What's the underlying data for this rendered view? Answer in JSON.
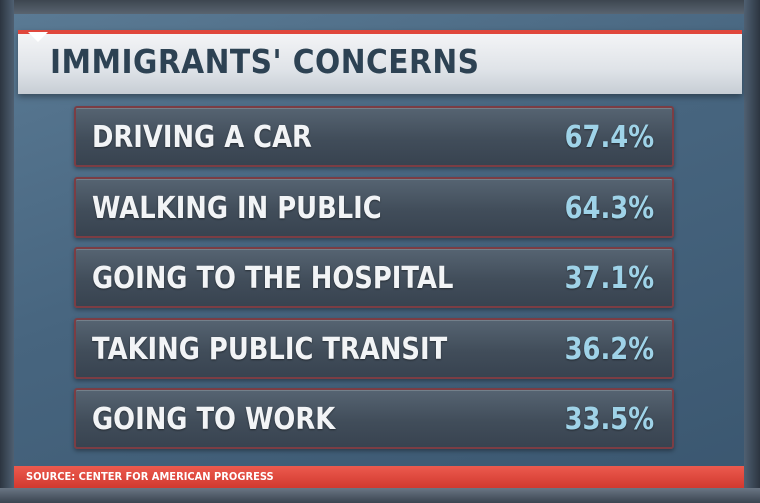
{
  "chart_data": {
    "type": "table",
    "title": "IMMIGRANTS' CONCERNS",
    "categories": [
      "DRIVING A CAR",
      "WALKING IN PUBLIC",
      "GOING TO THE HOSPITAL",
      "TAKING PUBLIC TRANSIT",
      "GOING TO WORK"
    ],
    "values": [
      67.4,
      64.3,
      37.1,
      36.2,
      33.5
    ],
    "rows": [
      {
        "label": "DRIVING A CAR",
        "value": "67.4%"
      },
      {
        "label": "WALKING IN PUBLIC",
        "value": "64.3%"
      },
      {
        "label": "GOING TO THE HOSPITAL",
        "value": "37.1%"
      },
      {
        "label": "TAKING PUBLIC TRANSIT",
        "value": "36.2%"
      },
      {
        "label": "GOING TO WORK",
        "value": "33.5%"
      }
    ],
    "source": "SOURCE: CENTER FOR AMERICAN PROGRESS"
  },
  "colors": {
    "accent": "#e0473c",
    "value_text": "#9fd3e8",
    "title_text": "#2d4253"
  }
}
